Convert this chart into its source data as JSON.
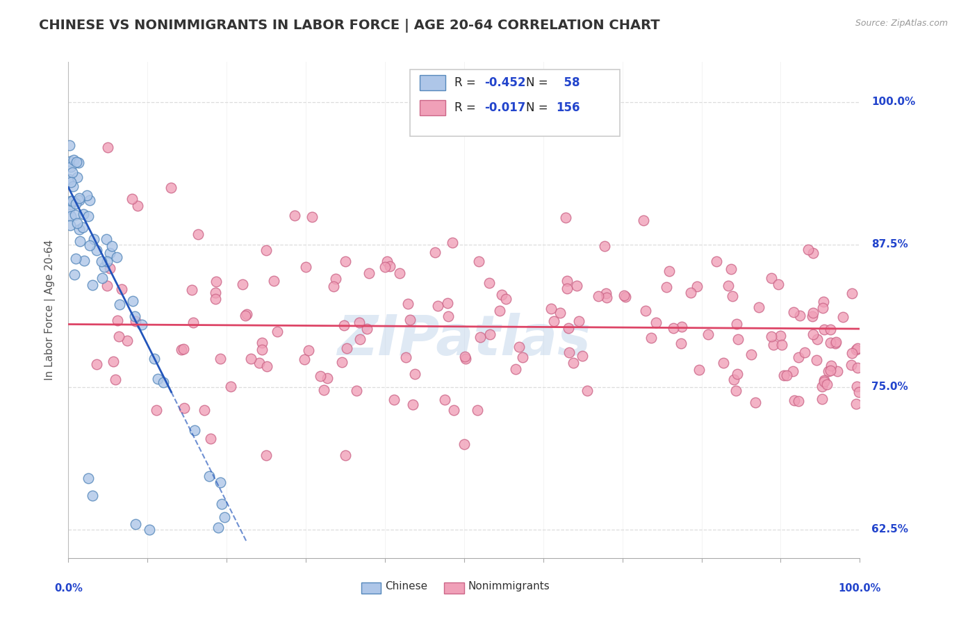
{
  "title": "CHINESE VS NONIMMIGRANTS IN LABOR FORCE | AGE 20-64 CORRELATION CHART",
  "ylabel": "In Labor Force | Age 20-64",
  "source_text": "Source: ZipAtlas.com",
  "legend_label_chinese": "Chinese",
  "legend_label_nonimmigrants": "Nonimmigrants",
  "watermark_text": "ZIPatlas",
  "xlim": [
    0.0,
    100.0
  ],
  "ylim": [
    60.0,
    103.5
  ],
  "yticks": [
    62.5,
    75.0,
    87.5,
    100.0
  ],
  "ytick_labels": [
    "62.5%",
    "75.0%",
    "87.5%",
    "100.0%"
  ],
  "xtick_positions": [
    0,
    10,
    20,
    30,
    40,
    50,
    60,
    70,
    80,
    90,
    100
  ],
  "background_color": "#ffffff",
  "grid_color": "#dddddd",
  "title_color": "#333333",
  "title_fontsize": 14,
  "chinese_dot_color": "#aec6e8",
  "chinese_dot_edge": "#5588bb",
  "nonimm_dot_color": "#f0a0b8",
  "nonimm_dot_edge": "#cc6688",
  "chinese_line_color": "#2255bb",
  "nonimm_line_color": "#dd4466",
  "chinese_R": -0.452,
  "chinese_N": 58,
  "nonimm_R": -0.017,
  "nonimm_N": 156,
  "stat_color": "#2244cc",
  "ytick_color": "#2244cc",
  "xtick_color": "#2244cc",
  "chin_slope": -1.38,
  "chin_intercept": 92.5,
  "chin_solid_end": 13.0,
  "chin_dash_end": 22.5,
  "nonimm_line_intercept": 80.5,
  "nonimm_line_slope": -0.004
}
